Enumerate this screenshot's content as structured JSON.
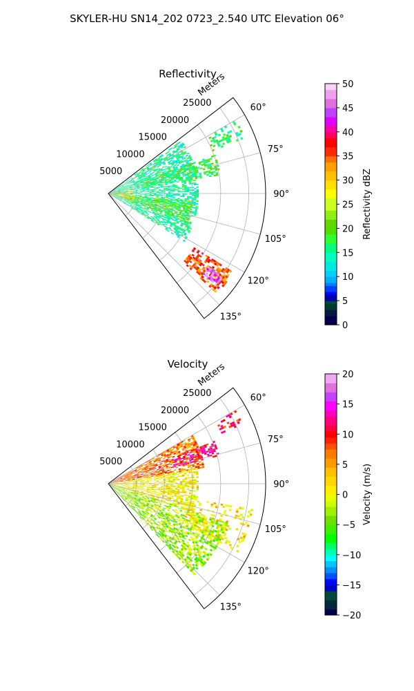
{
  "figure": {
    "title": "SKYLER-HU  SN14_202  0723_2.540 UTC Elevation 06°"
  },
  "chart_data": [
    {
      "type": "heatmap",
      "projection": "polar-sector",
      "title": "Reflectivity",
      "range_label": "Meters",
      "range_ticks": [
        5000,
        10000,
        15000,
        20000,
        25000
      ],
      "range_tick_labels": [
        "5000",
        "10000",
        "15000",
        "20000",
        "25000"
      ],
      "range_max": 28000,
      "azimuth_range_deg": [
        52.5,
        142.5
      ],
      "azimuth_ticks": [
        60,
        75,
        90,
        105,
        120,
        135
      ],
      "azimuth_tick_labels": [
        "60°",
        "75°",
        "90°",
        "105°",
        "120°",
        "135°"
      ],
      "grid": true,
      "colorbar": {
        "label": "Reflectivity dBZ",
        "range": [
          0,
          50
        ],
        "ticks": [
          0,
          5,
          10,
          15,
          20,
          25,
          30,
          35,
          40,
          45,
          50
        ],
        "tick_labels": [
          "0",
          "5",
          "10",
          "15",
          "20",
          "25",
          "30",
          "35",
          "40",
          "45",
          "50"
        ]
      },
      "echo_regions": [
        {
          "az": [
            54,
            122
          ],
          "range": [
            0,
            16000
          ],
          "value": 15,
          "density": 0.55
        },
        {
          "az": [
            70,
            80
          ],
          "range": [
            6000,
            20000
          ],
          "value": 18,
          "density": 0.5
        },
        {
          "az": [
            95,
            110
          ],
          "range": [
            3000,
            15000
          ],
          "value": 20,
          "density": 0.5
        },
        {
          "az": [
            60,
            68
          ],
          "range": [
            20000,
            26000
          ],
          "value": 17,
          "density": 0.25
        },
        {
          "az": [
            122,
            132
          ],
          "range": [
            18000,
            26000
          ],
          "value": 35,
          "density": 0.55
        },
        {
          "az": [
            126,
            130
          ],
          "range": [
            22000,
            25000
          ],
          "value": 45,
          "density": 0.7
        },
        {
          "az": [
            80,
            108
          ],
          "range": [
            0,
            4500
          ],
          "value": 30,
          "density": 0.4
        }
      ]
    },
    {
      "type": "heatmap",
      "projection": "polar-sector",
      "title": "Velocity",
      "range_label": "Meters",
      "range_ticks": [
        5000,
        10000,
        15000,
        20000,
        25000
      ],
      "range_tick_labels": [
        "5000",
        "10000",
        "15000",
        "20000",
        "25000"
      ],
      "range_max": 28000,
      "azimuth_range_deg": [
        52.5,
        142.5
      ],
      "azimuth_ticks": [
        60,
        75,
        90,
        105,
        120,
        135
      ],
      "azimuth_tick_labels": [
        "60°",
        "75°",
        "90°",
        "105°",
        "120°",
        "135°"
      ],
      "grid": true,
      "colorbar": {
        "label": "Velocity (m/s)",
        "range": [
          -20,
          20
        ],
        "ticks": [
          -20,
          -15,
          -10,
          -5,
          0,
          5,
          10,
          15,
          20
        ],
        "tick_labels": [
          "−20",
          "−15",
          "−10",
          "−5",
          "0",
          "5",
          "10",
          "15",
          "20"
        ]
      },
      "echo_regions": [
        {
          "az": [
            60,
            80
          ],
          "range": [
            0,
            17000
          ],
          "value": 7,
          "density": 0.6
        },
        {
          "az": [
            68,
            76
          ],
          "range": [
            12000,
            20000
          ],
          "value": 12,
          "density": 0.5
        },
        {
          "az": [
            60,
            66
          ],
          "range": [
            22000,
            26000
          ],
          "value": 10,
          "density": 0.25
        },
        {
          "az": [
            80,
            108
          ],
          "range": [
            0,
            16000
          ],
          "value": 1,
          "density": 0.55
        },
        {
          "az": [
            108,
            136
          ],
          "range": [
            0,
            22000
          ],
          "value": -3,
          "density": 0.55
        },
        {
          "az": [
            100,
            118
          ],
          "range": [
            14000,
            26000
          ],
          "value": 2,
          "density": 0.25
        }
      ]
    }
  ]
}
